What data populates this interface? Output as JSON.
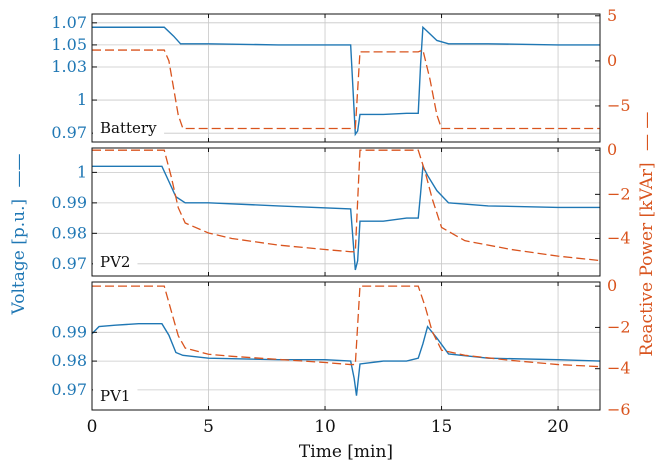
{
  "chart_data": {
    "type": "line",
    "xlabel": "Time [min]",
    "ylabel_left": "Voltage [p.u.]",
    "ylabel_right": "Reactive Power [kVAr]",
    "left_legend_marker": "——",
    "right_legend_marker": "— —",
    "x_ticks": [
      "0",
      "5",
      "10",
      "15",
      "20"
    ],
    "xlim": [
      0,
      21.8
    ],
    "grid": true,
    "colors": {
      "voltage": "#1f77b4",
      "reactive": "#d9541e"
    },
    "panels": [
      {
        "label": "Battery",
        "voltage_ylim": [
          0.962,
          1.078
        ],
        "voltage_ticks": [
          "1.07",
          "1.05",
          "1.03",
          "1",
          "0.97"
        ],
        "voltage_tick_values": [
          1.07,
          1.05,
          1.03,
          1.0,
          0.97
        ],
        "reactive_ylim": [
          -9.0,
          5.2
        ],
        "reactive_ticks": [
          "5",
          "0",
          "−5"
        ],
        "reactive_tick_values": [
          5,
          0,
          -5
        ],
        "series": [
          {
            "name": "Voltage",
            "axis": "left",
            "style": "solid",
            "x": [
              0,
              1,
              2,
              3.1,
              3.5,
              3.8,
              5,
              8,
              11.1,
              11.2,
              11.3,
              11.4,
              11.5,
              12.5,
              13.5,
              14.0,
              14.1,
              14.2,
              14.4,
              14.8,
              15.3,
              17,
              20,
              21.8
            ],
            "y": [
              1.066,
              1.066,
              1.066,
              1.066,
              1.058,
              1.051,
              1.051,
              1.05,
              1.05,
              1.01,
              0.969,
              0.972,
              0.987,
              0.987,
              0.988,
              0.988,
              1.032,
              1.066,
              1.062,
              1.054,
              1.051,
              1.051,
              1.05,
              1.05
            ]
          },
          {
            "name": "Reactive Power",
            "axis": "right",
            "style": "dashed",
            "x": [
              0,
              1,
              2,
              3.1,
              3.3,
              3.5,
              3.7,
              3.9,
              5,
              8,
              11.1,
              11.3,
              11.5,
              12.5,
              13.5,
              14.0,
              14.2,
              14.5,
              14.8,
              15,
              17,
              20,
              21.8
            ],
            "y": [
              1.2,
              1.2,
              1.2,
              1.2,
              0.0,
              -3.0,
              -6.0,
              -7.5,
              -7.5,
              -7.5,
              -7.5,
              -7.5,
              1.0,
              1.0,
              1.0,
              1.0,
              1.2,
              -2.0,
              -6.0,
              -7.5,
              -7.5,
              -7.5,
              -7.5
            ]
          }
        ]
      },
      {
        "label": "PV2",
        "voltage_ylim": [
          0.966,
          1.008
        ],
        "voltage_ticks": [
          "1",
          "0.99",
          "0.98",
          "0.97"
        ],
        "voltage_tick_values": [
          1.0,
          0.99,
          0.98,
          0.97
        ],
        "reactive_ylim": [
          -5.7,
          0.1
        ],
        "reactive_ticks": [
          "0",
          "−2",
          "−4"
        ],
        "reactive_tick_values": [
          0,
          -2,
          -4
        ],
        "series": [
          {
            "name": "Voltage",
            "axis": "left",
            "style": "solid",
            "x": [
              0,
              1,
              2,
              3.0,
              3.3,
              3.6,
              4.0,
              5,
              8,
              11.1,
              11.2,
              11.3,
              11.4,
              11.5,
              12.5,
              13.5,
              14.0,
              14.1,
              14.2,
              14.4,
              14.8,
              15.3,
              17,
              20,
              21.8
            ],
            "y": [
              1.002,
              1.002,
              1.002,
              1.002,
              0.997,
              0.992,
              0.99,
              0.99,
              0.989,
              0.988,
              0.978,
              0.968,
              0.971,
              0.984,
              0.984,
              0.985,
              0.985,
              0.993,
              1.002,
              0.999,
              0.994,
              0.99,
              0.989,
              0.9885,
              0.9885
            ]
          },
          {
            "name": "Reactive Power",
            "axis": "right",
            "style": "dashed",
            "x": [
              0,
              1,
              2,
              3.1,
              3.4,
              3.7,
              4.0,
              5,
              6,
              8,
              10,
              11.1,
              11.3,
              11.5,
              12.5,
              14.0,
              14.3,
              14.6,
              15.0,
              16,
              18,
              20,
              21.8
            ],
            "y": [
              0,
              0,
              0,
              0,
              -1.2,
              -2.6,
              -3.3,
              -3.75,
              -4.0,
              -4.3,
              -4.5,
              -4.6,
              -4.6,
              0,
              0,
              0,
              -1.0,
              -2.2,
              -3.5,
              -4.1,
              -4.5,
              -4.8,
              -5.0
            ]
          }
        ]
      },
      {
        "label": "PV1",
        "voltage_ylim": [
          0.963,
          1.0075
        ],
        "voltage_ticks": [
          "0.99",
          "0.98",
          "0.97"
        ],
        "voltage_tick_values": [
          0.99,
          0.98,
          0.97
        ],
        "reactive_ylim": [
          -6.0,
          0.2
        ],
        "reactive_ticks": [
          "0",
          "−2",
          "−4",
          "−6"
        ],
        "reactive_tick_values": [
          0,
          -2,
          -4,
          -6
        ],
        "series": [
          {
            "name": "Voltage",
            "axis": "left",
            "style": "solid",
            "x": [
              0,
              0.3,
              1,
              2,
              3.0,
              3.3,
              3.6,
              3.9,
              5,
              8,
              10,
              11.1,
              11.25,
              11.35,
              11.5,
              12.5,
              13.5,
              14.0,
              14.2,
              14.4,
              14.8,
              15.3,
              17,
              20,
              21.8
            ],
            "y": [
              0.9895,
              0.992,
              0.9925,
              0.993,
              0.993,
              0.989,
              0.983,
              0.982,
              0.981,
              0.9805,
              0.9805,
              0.98,
              0.974,
              0.968,
              0.979,
              0.98,
              0.98,
              0.981,
              0.986,
              0.992,
              0.988,
              0.9825,
              0.981,
              0.9805,
              0.98
            ]
          },
          {
            "name": "Reactive Power",
            "axis": "right",
            "style": "dashed",
            "x": [
              0,
              1,
              2,
              3.1,
              3.4,
              3.7,
              4.0,
              5,
              6,
              8,
              10,
              11.1,
              11.3,
              11.5,
              12.5,
              14.0,
              14.3,
              14.6,
              15.0,
              16,
              18,
              20,
              21.8
            ],
            "y": [
              0,
              0,
              0,
              0,
              -1.2,
              -2.4,
              -3.0,
              -3.3,
              -3.4,
              -3.55,
              -3.7,
              -3.8,
              -3.8,
              0,
              0,
              0,
              -1.0,
              -2.2,
              -3.1,
              -3.35,
              -3.6,
              -3.8,
              -3.9
            ]
          }
        ]
      }
    ]
  }
}
